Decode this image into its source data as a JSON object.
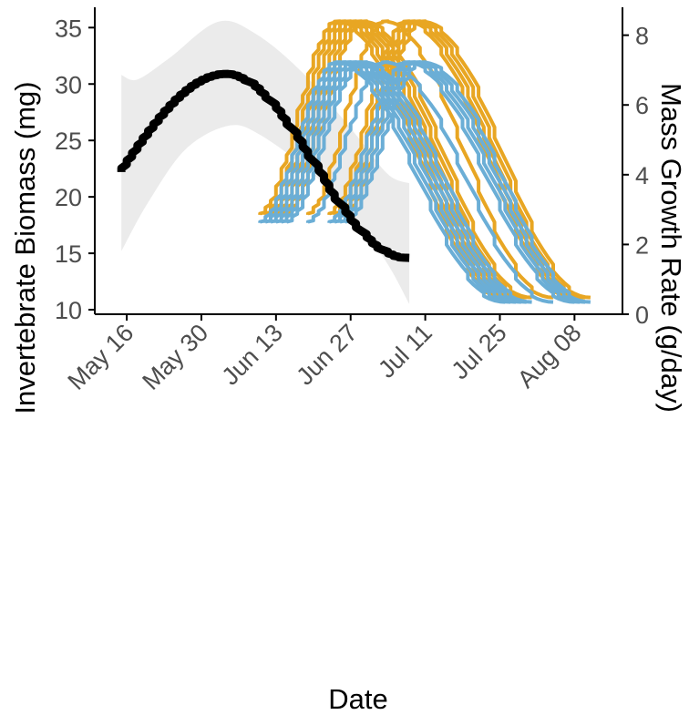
{
  "chart_data": {
    "type": "line",
    "title": "",
    "xlabel": "Date",
    "ylabel": "Invertebrate Biomass (mg)",
    "y2label": "Mass Growth Rate (g/day)",
    "x_ticks": [
      "May 16",
      "May 30",
      "Jun 13",
      "Jun 27",
      "Jul 11",
      "Jul 25",
      "Aug 08"
    ],
    "xlim": [
      "2021-05-10",
      "2021-08-17"
    ],
    "ylim": [
      9.6,
      36.8
    ],
    "y_ticks": [
      10,
      15,
      20,
      25,
      30,
      35
    ],
    "y2lim": [
      0,
      8.8
    ],
    "y2_ticks": [
      0,
      2,
      4,
      6,
      8
    ],
    "grid": false,
    "legend": "none",
    "colors": {
      "biomass_line": "#000000",
      "confidence_band": "#ebebeb",
      "growth_orange": "#E8A623",
      "growth_blue": "#6BAED6",
      "axis": "#000000",
      "tick_text": "#4d4d4d"
    },
    "biomass": {
      "axis": "left",
      "start_date": "2021-05-15",
      "end_date": "2021-07-08",
      "peak_date": "2021-06-04",
      "start_value": 22.2,
      "peak_value": 30.9,
      "end_value": 14.6,
      "ci_lower": [
        {
          "date": "2021-05-15",
          "value": 15.2
        },
        {
          "date": "2021-05-20",
          "value": 19.5
        },
        {
          "date": "2021-05-27",
          "value": 24.2
        },
        {
          "date": "2021-06-04",
          "value": 26.3
        },
        {
          "date": "2021-06-10",
          "value": 25.5
        },
        {
          "date": "2021-06-20",
          "value": 22.0
        },
        {
          "date": "2021-06-28",
          "value": 18.0
        },
        {
          "date": "2021-07-04",
          "value": 14.0
        },
        {
          "date": "2021-07-08",
          "value": 10.5
        }
      ],
      "ci_upper": [
        {
          "date": "2021-05-15",
          "value": 30.8
        },
        {
          "date": "2021-05-18",
          "value": 30.4
        },
        {
          "date": "2021-05-24",
          "value": 32.3
        },
        {
          "date": "2021-06-02",
          "value": 35.5
        },
        {
          "date": "2021-06-09",
          "value": 34.5
        },
        {
          "date": "2021-06-18",
          "value": 31.0
        },
        {
          "date": "2021-06-28",
          "value": 25.5
        },
        {
          "date": "2021-07-04",
          "value": 22.0
        },
        {
          "date": "2021-07-08",
          "value": 21.2
        }
      ]
    },
    "growth_series": [
      {
        "color": "orange",
        "start": "2021-06-10",
        "peak": "2021-06-25",
        "end": "2021-07-26",
        "start_rate": 2.85,
        "peak_rate": 8.4,
        "end_rate": 0.48
      },
      {
        "color": "orange",
        "start": "2021-06-11",
        "peak": "2021-06-26",
        "end": "2021-07-27",
        "start_rate": 2.85,
        "peak_rate": 8.4,
        "end_rate": 0.48
      },
      {
        "color": "orange",
        "start": "2021-06-12",
        "peak": "2021-06-27",
        "end": "2021-07-28",
        "start_rate": 2.85,
        "peak_rate": 8.4,
        "end_rate": 0.48
      },
      {
        "color": "orange",
        "start": "2021-06-13",
        "peak": "2021-06-28",
        "end": "2021-07-29",
        "start_rate": 2.85,
        "peak_rate": 8.4,
        "end_rate": 0.48
      },
      {
        "color": "orange",
        "start": "2021-06-14",
        "peak": "2021-06-29",
        "end": "2021-07-30",
        "start_rate": 2.85,
        "peak_rate": 8.4,
        "end_rate": 0.48
      },
      {
        "color": "orange",
        "start": "2021-06-15",
        "peak": "2021-06-30",
        "end": "2021-07-31",
        "start_rate": 2.85,
        "peak_rate": 8.4,
        "end_rate": 0.48
      },
      {
        "color": "orange",
        "start": "2021-06-19",
        "peak": "2021-07-04",
        "end": "2021-08-04",
        "start_rate": 2.85,
        "peak_rate": 8.4,
        "end_rate": 0.48
      },
      {
        "color": "orange",
        "start": "2021-06-23",
        "peak": "2021-07-08",
        "end": "2021-08-08",
        "start_rate": 2.85,
        "peak_rate": 8.4,
        "end_rate": 0.48
      },
      {
        "color": "orange",
        "start": "2021-06-24",
        "peak": "2021-07-09",
        "end": "2021-08-09",
        "start_rate": 2.85,
        "peak_rate": 8.4,
        "end_rate": 0.48
      },
      {
        "color": "orange",
        "start": "2021-06-25",
        "peak": "2021-07-10",
        "end": "2021-08-10",
        "start_rate": 2.85,
        "peak_rate": 8.4,
        "end_rate": 0.48
      },
      {
        "color": "orange",
        "start": "2021-06-26",
        "peak": "2021-07-11",
        "end": "2021-08-11",
        "start_rate": 2.85,
        "peak_rate": 8.4,
        "end_rate": 0.48
      },
      {
        "color": "blue",
        "start": "2021-06-10",
        "peak": "2021-06-25",
        "end": "2021-07-26",
        "start_rate": 2.62,
        "peak_rate": 7.23,
        "end_rate": 0.35
      },
      {
        "color": "blue",
        "start": "2021-06-11",
        "peak": "2021-06-26",
        "end": "2021-07-27",
        "start_rate": 2.62,
        "peak_rate": 7.23,
        "end_rate": 0.35
      },
      {
        "color": "blue",
        "start": "2021-06-12",
        "peak": "2021-06-27",
        "end": "2021-07-28",
        "start_rate": 2.62,
        "peak_rate": 7.23,
        "end_rate": 0.35
      },
      {
        "color": "blue",
        "start": "2021-06-13",
        "peak": "2021-06-28",
        "end": "2021-07-29",
        "start_rate": 2.62,
        "peak_rate": 7.23,
        "end_rate": 0.35
      },
      {
        "color": "blue",
        "start": "2021-06-14",
        "peak": "2021-06-29",
        "end": "2021-07-30",
        "start_rate": 2.62,
        "peak_rate": 7.23,
        "end_rate": 0.35
      },
      {
        "color": "blue",
        "start": "2021-06-15",
        "peak": "2021-06-30",
        "end": "2021-07-31",
        "start_rate": 2.62,
        "peak_rate": 7.23,
        "end_rate": 0.35
      },
      {
        "color": "blue",
        "start": "2021-06-19",
        "peak": "2021-07-04",
        "end": "2021-08-04",
        "start_rate": 2.62,
        "peak_rate": 7.23,
        "end_rate": 0.35
      },
      {
        "color": "blue",
        "start": "2021-06-23",
        "peak": "2021-07-08",
        "end": "2021-08-08",
        "start_rate": 2.62,
        "peak_rate": 7.23,
        "end_rate": 0.35
      },
      {
        "color": "blue",
        "start": "2021-06-24",
        "peak": "2021-07-09",
        "end": "2021-08-09",
        "start_rate": 2.62,
        "peak_rate": 7.23,
        "end_rate": 0.35
      },
      {
        "color": "blue",
        "start": "2021-06-25",
        "peak": "2021-07-10",
        "end": "2021-08-10",
        "start_rate": 2.62,
        "peak_rate": 7.23,
        "end_rate": 0.35
      },
      {
        "color": "blue",
        "start": "2021-06-26",
        "peak": "2021-07-11",
        "end": "2021-08-11",
        "start_rate": 2.62,
        "peak_rate": 7.23,
        "end_rate": 0.35
      }
    ]
  }
}
